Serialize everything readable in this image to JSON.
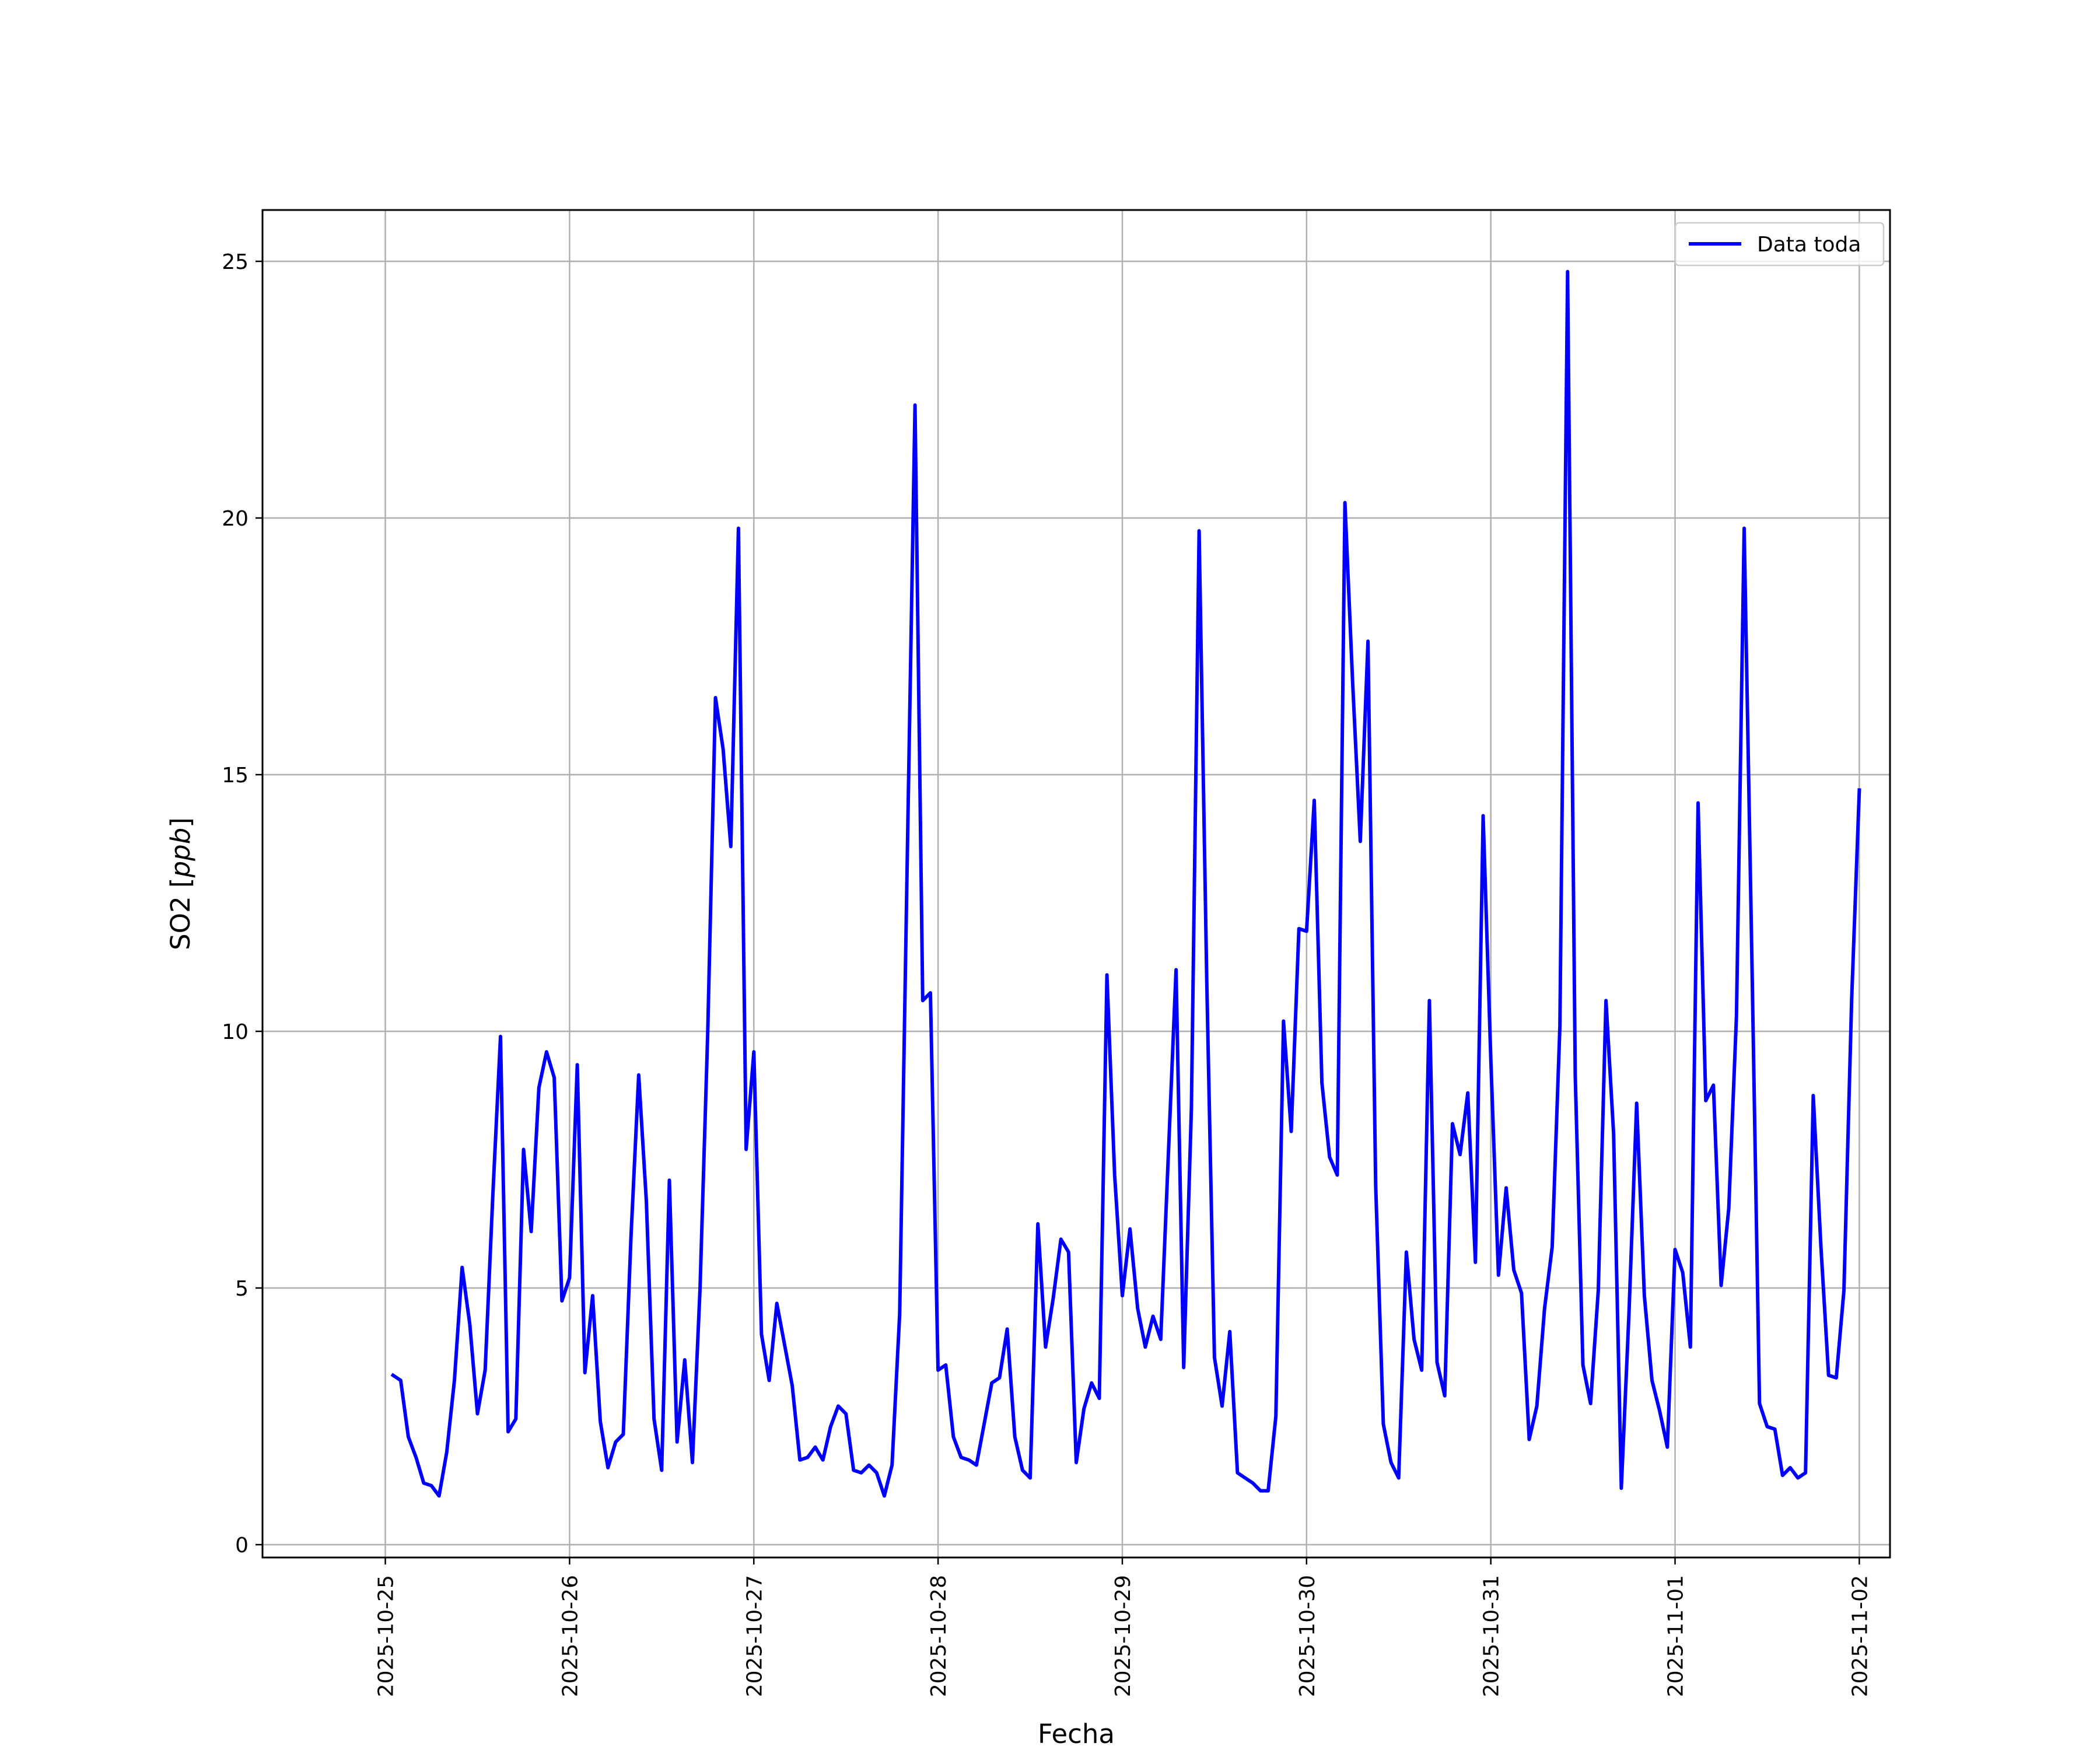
{
  "chart_data": {
    "type": "line",
    "title": "",
    "xlabel": "Fecha",
    "ylabel": "SO2 [ppb]",
    "ylabel_plain": "SO2 [",
    "ylabel_italic": "ppb",
    "ylabel_close": "]",
    "x_type": "datetime",
    "x_start": "2025-10-25T01:00",
    "x_step_hours": 1,
    "x_ticks": [
      "2025-10-25",
      "2025-10-26",
      "2025-10-27",
      "2025-10-28",
      "2025-10-29",
      "2025-10-30",
      "2025-10-31",
      "2025-11-01",
      "2025-11-02"
    ],
    "xlim": [
      "2025-10-24T08:00",
      "2025-11-02T04:00"
    ],
    "ylim": [
      -0.25,
      26.0
    ],
    "y_ticks": [
      0,
      5,
      10,
      15,
      20,
      25
    ],
    "grid": true,
    "legend": "top-right",
    "colors": {
      "line": "#0000ff",
      "grid": "#b0b0b0",
      "frame": "#000000"
    },
    "series": [
      {
        "name": "Data toda",
        "values": [
          3.3,
          3.2,
          2.1,
          1.7,
          1.2,
          1.15,
          0.95,
          1.8,
          3.2,
          5.4,
          4.3,
          2.55,
          3.4,
          6.8,
          9.9,
          2.2,
          2.45,
          7.7,
          6.1,
          8.9,
          9.6,
          9.1,
          4.75,
          5.2,
          9.35,
          3.35,
          4.85,
          2.4,
          1.5,
          2.0,
          2.15,
          6.0,
          9.15,
          6.7,
          2.45,
          1.45,
          7.1,
          2.0,
          3.6,
          1.6,
          5.0,
          10.0,
          16.5,
          15.5,
          13.6,
          19.8,
          7.7,
          9.6,
          4.1,
          3.2,
          4.7,
          3.9,
          3.1,
          1.65,
          1.7,
          1.9,
          1.65,
          2.3,
          2.7,
          2.55,
          1.45,
          1.4,
          1.55,
          1.4,
          0.95,
          1.55,
          4.5,
          13.5,
          22.2,
          10.6,
          10.75,
          3.4,
          3.5,
          2.1,
          1.7,
          1.65,
          1.55,
          2.35,
          3.15,
          3.25,
          4.2,
          2.1,
          1.45,
          1.3,
          6.25,
          3.85,
          4.8,
          5.95,
          5.7,
          1.6,
          2.65,
          3.15,
          2.85,
          11.1,
          7.2,
          4.85,
          6.15,
          4.6,
          3.85,
          4.45,
          4.0,
          7.6,
          11.2,
          3.45,
          8.5,
          19.75,
          11.0,
          3.65,
          2.7,
          4.15,
          1.4,
          1.3,
          1.2,
          1.05,
          1.05,
          2.5,
          10.2,
          8.05,
          12.0,
          11.95,
          14.5,
          9.0,
          7.55,
          7.2,
          20.3,
          16.8,
          13.7,
          17.6,
          7.0,
          2.35,
          1.6,
          1.3,
          5.7,
          4.0,
          3.4,
          10.6,
          3.55,
          2.9,
          8.2,
          7.6,
          8.8,
          5.5,
          14.2,
          9.45,
          5.25,
          6.95,
          5.35,
          4.9,
          2.05,
          2.7,
          4.6,
          5.8,
          10.1,
          24.8,
          9.15,
          3.5,
          2.75,
          4.95,
          10.6,
          8.0,
          1.1,
          4.5,
          8.6,
          4.85,
          3.2,
          2.6,
          1.9,
          5.75,
          5.3,
          3.85,
          14.45,
          8.65,
          8.95,
          5.05,
          6.55,
          10.3,
          19.8,
          11.5,
          2.75,
          2.3,
          2.25,
          1.35,
          1.5,
          1.3,
          1.4,
          8.75,
          5.8,
          3.3,
          3.25,
          4.95,
          10.6,
          14.7
        ]
      }
    ]
  }
}
